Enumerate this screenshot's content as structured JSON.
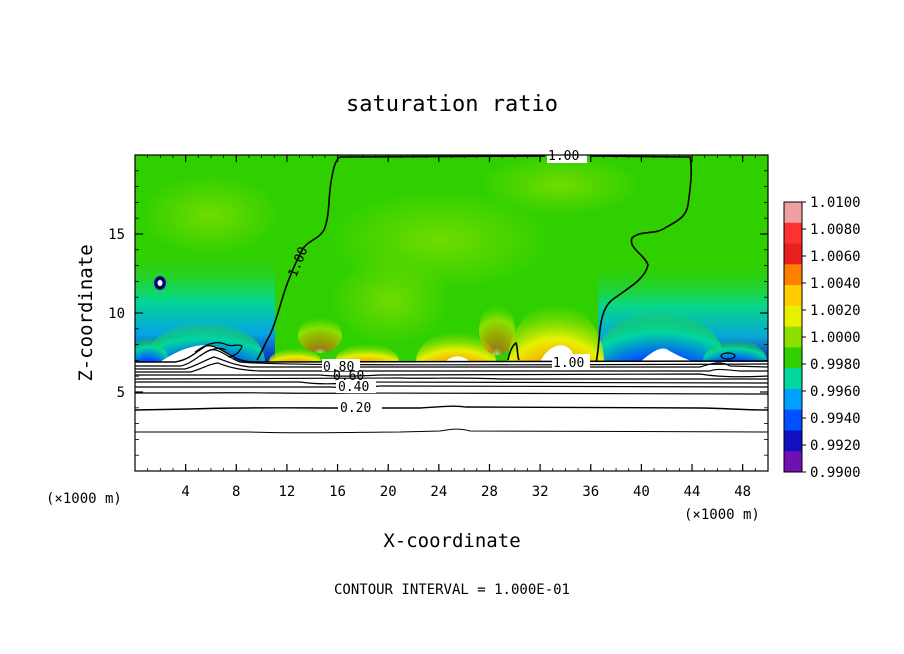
{
  "chart_data": {
    "type": "heatmap",
    "title": "saturation ratio",
    "xlabel": "X-coordinate",
    "ylabel": "Z-coordinate",
    "x_unit": "(×1000 m)",
    "y_unit": "(×1000 m)",
    "footer": "CONTOUR INTERVAL = 1.000E-01",
    "xlim": [
      0,
      50
    ],
    "ylim": [
      0,
      20
    ],
    "x_ticks": [
      4,
      8,
      12,
      16,
      20,
      24,
      28,
      32,
      36,
      40,
      44,
      48
    ],
    "y_ticks": [
      5,
      10,
      15
    ],
    "colorbar": {
      "min": 0.99,
      "max": 1.01,
      "ticks": [
        "1.0100",
        "1.0080",
        "1.0060",
        "1.0040",
        "1.0020",
        "1.0000",
        "0.9980",
        "0.9960",
        "0.9940",
        "0.9920",
        "0.9900"
      ],
      "colors": [
        "#f0a0a0",
        "#ff3030",
        "#e82020",
        "#ff8000",
        "#ffcc00",
        "#e8f000",
        "#8ce000",
        "#30d000",
        "#00d8a0",
        "#00a0ff",
        "#0050ff",
        "#1010c0",
        "#7010b0"
      ]
    },
    "contour_labels": [
      "1.00",
      "1.00",
      "1.00",
      "0.80",
      "0.60",
      "0.40",
      "0.20"
    ],
    "features": {
      "background_level": 1.0,
      "cloud_base_z": 7.0,
      "moist_maxima": [
        {
          "x": 25.5,
          "z": 7.4,
          "value": 1.008
        },
        {
          "x": 33.5,
          "z": 7.5,
          "value": 1.009
        },
        {
          "x": 14.5,
          "z": 7.2,
          "value": 1.004
        },
        {
          "x": 18.5,
          "z": 7.4,
          "value": 1.003
        },
        {
          "x": 28.0,
          "z": 8.5,
          "value": 1.002
        }
      ],
      "dry_minima": [
        {
          "x": 5.5,
          "z": 7.5,
          "value": 0.991
        },
        {
          "x": 1.2,
          "z": 7.3,
          "value": 0.993
        },
        {
          "x": 41.0,
          "z": 7.6,
          "value": 0.991
        },
        {
          "x": 46.5,
          "z": 7.4,
          "value": 0.992
        }
      ]
    }
  }
}
